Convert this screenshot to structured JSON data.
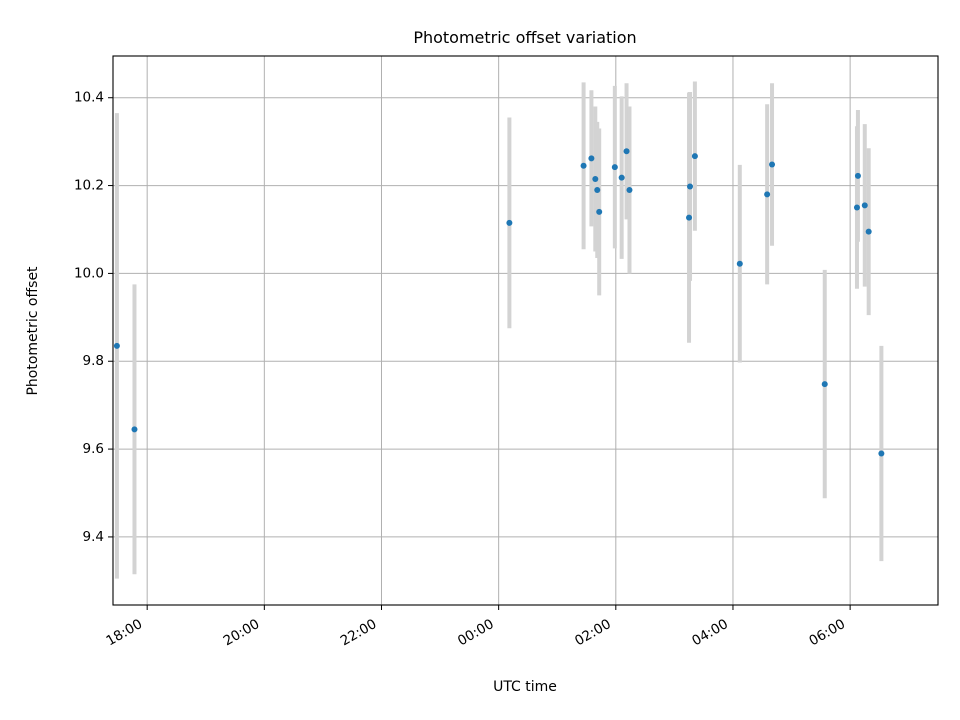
{
  "chart_data": {
    "type": "scatter",
    "title": "Photometric offset variation",
    "xlabel": "UTC time",
    "ylabel": "Photometric offset",
    "x_is_time": true,
    "xlim": [
      "17:25",
      "07:30 next day"
    ],
    "ylim": [
      9.245,
      10.495
    ],
    "grid": true,
    "error_bar_color": "#d3d3d3",
    "marker_color": "#1f77b4",
    "x_ticks": [
      {
        "value": "18:00",
        "label": "18:00"
      },
      {
        "value": "20:00",
        "label": "20:00"
      },
      {
        "value": "22:00",
        "label": "22:00"
      },
      {
        "value": "00:00",
        "label": "00:00"
      },
      {
        "value": "02:00",
        "label": "02:00"
      },
      {
        "value": "04:00",
        "label": "04:00"
      },
      {
        "value": "06:00",
        "label": "06:00"
      }
    ],
    "y_ticks": [
      {
        "value": 9.4,
        "label": "9.4"
      },
      {
        "value": 9.6,
        "label": "9.6"
      },
      {
        "value": 9.8,
        "label": "9.8"
      },
      {
        "value": 10.0,
        "label": "10.0"
      },
      {
        "value": 10.2,
        "label": "10.2"
      },
      {
        "value": 10.4,
        "label": "10.4"
      }
    ],
    "points": [
      {
        "time": "17:29",
        "y": 9.835,
        "err": 0.53
      },
      {
        "time": "17:47",
        "y": 9.645,
        "err": 0.33
      },
      {
        "time": "00:11",
        "y": 10.115,
        "err": 0.24
      },
      {
        "time": "01:27",
        "y": 10.245,
        "err": 0.19
      },
      {
        "time": "01:35",
        "y": 10.262,
        "err": 0.155
      },
      {
        "time": "01:39",
        "y": 10.215,
        "err": 0.165
      },
      {
        "time": "01:41",
        "y": 10.19,
        "err": 0.155
      },
      {
        "time": "01:43",
        "y": 10.14,
        "err": 0.19
      },
      {
        "time": "01:59",
        "y": 10.242,
        "err": 0.185
      },
      {
        "time": "02:06",
        "y": 10.218,
        "err": 0.185
      },
      {
        "time": "02:11",
        "y": 10.278,
        "err": 0.155
      },
      {
        "time": "02:14",
        "y": 10.19,
        "err": 0.19
      },
      {
        "time": "03:15",
        "y": 10.127,
        "err": 0.285
      },
      {
        "time": "03:16",
        "y": 10.198,
        "err": 0.215
      },
      {
        "time": "03:21",
        "y": 10.267,
        "err": 0.17
      },
      {
        "time": "04:07",
        "y": 10.022,
        "err": 0.225
      },
      {
        "time": "04:35",
        "y": 10.18,
        "err": 0.205
      },
      {
        "time": "04:40",
        "y": 10.248,
        "err": 0.185
      },
      {
        "time": "05:34",
        "y": 9.748,
        "err": 0.26
      },
      {
        "time": "06:07",
        "y": 10.15,
        "err": 0.185
      },
      {
        "time": "06:08",
        "y": 10.222,
        "err": 0.15
      },
      {
        "time": "06:15",
        "y": 10.155,
        "err": 0.185
      },
      {
        "time": "06:19",
        "y": 10.095,
        "err": 0.19
      },
      {
        "time": "06:32",
        "y": 9.59,
        "err": 0.245
      }
    ]
  }
}
